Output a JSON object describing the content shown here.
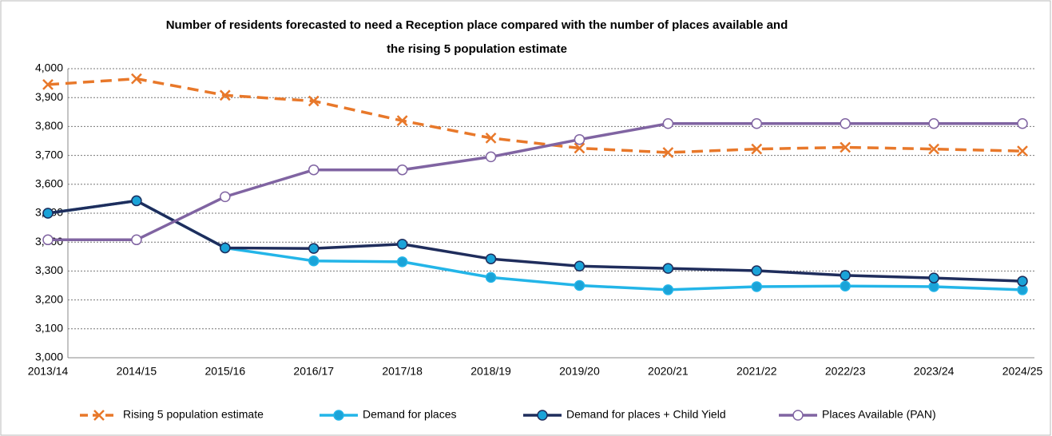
{
  "chart_data": {
    "type": "line",
    "title": [
      "Number of residents forecasted to need a Reception place compared with the number of places available and",
      "the rising 5 population estimate"
    ],
    "categories": [
      "2013/14",
      "2014/15",
      "2015/16",
      "2016/17",
      "2017/18",
      "2018/19",
      "2019/20",
      "2020/21",
      "2021/22",
      "2022/23",
      "2023/24",
      "2024/25"
    ],
    "series": [
      {
        "name": "Rising 5 population estimate",
        "color": "#e8782a",
        "dashed": true,
        "marker": "x",
        "marker_fill": "#e8782a",
        "values": [
          3945,
          3965,
          3908,
          3888,
          3820,
          3760,
          3725,
          3710,
          3722,
          3728,
          3722,
          3715
        ]
      },
      {
        "name": "Demand for places",
        "color": "#23b5e8",
        "dashed": false,
        "marker": "circle",
        "marker_fill": "#1aa3d8",
        "values": [
          3500,
          3543,
          3380,
          3335,
          3332,
          3278,
          3250,
          3235,
          3246,
          3248,
          3246,
          3235
        ]
      },
      {
        "name": "Demand for places + Child Yield",
        "color": "#1f2d5c",
        "dashed": false,
        "marker": "circle",
        "marker_fill": "#1aa3d8",
        "values": [
          3500,
          3543,
          3380,
          3378,
          3393,
          3342,
          3317,
          3309,
          3301,
          3285,
          3276,
          3265
        ]
      },
      {
        "name": "Places Available (PAN)",
        "color": "#8064a2",
        "dashed": false,
        "marker": "circle",
        "marker_fill": "#ffffff",
        "values": [
          3408,
          3408,
          3557,
          3650,
          3650,
          3695,
          3755,
          3810,
          3810,
          3810,
          3810,
          3810
        ]
      }
    ],
    "ylim": [
      3000,
      4000
    ],
    "yticks": [
      {
        "value": 3000,
        "label": "3,000"
      },
      {
        "value": 3100,
        "label": "3,100"
      },
      {
        "value": 3200,
        "label": "3,200"
      },
      {
        "value": 3300,
        "label": "3,300"
      },
      {
        "value": 3400,
        "label": "3,400"
      },
      {
        "value": 3500,
        "label": "3,500"
      },
      {
        "value": 3600,
        "label": "3,600"
      },
      {
        "value": 3700,
        "label": "3,700"
      },
      {
        "value": 3800,
        "label": "3,800"
      },
      {
        "value": 3900,
        "label": "3,900"
      },
      {
        "value": 4000,
        "label": "4,000"
      }
    ],
    "grid": true,
    "legend": "bottom"
  }
}
